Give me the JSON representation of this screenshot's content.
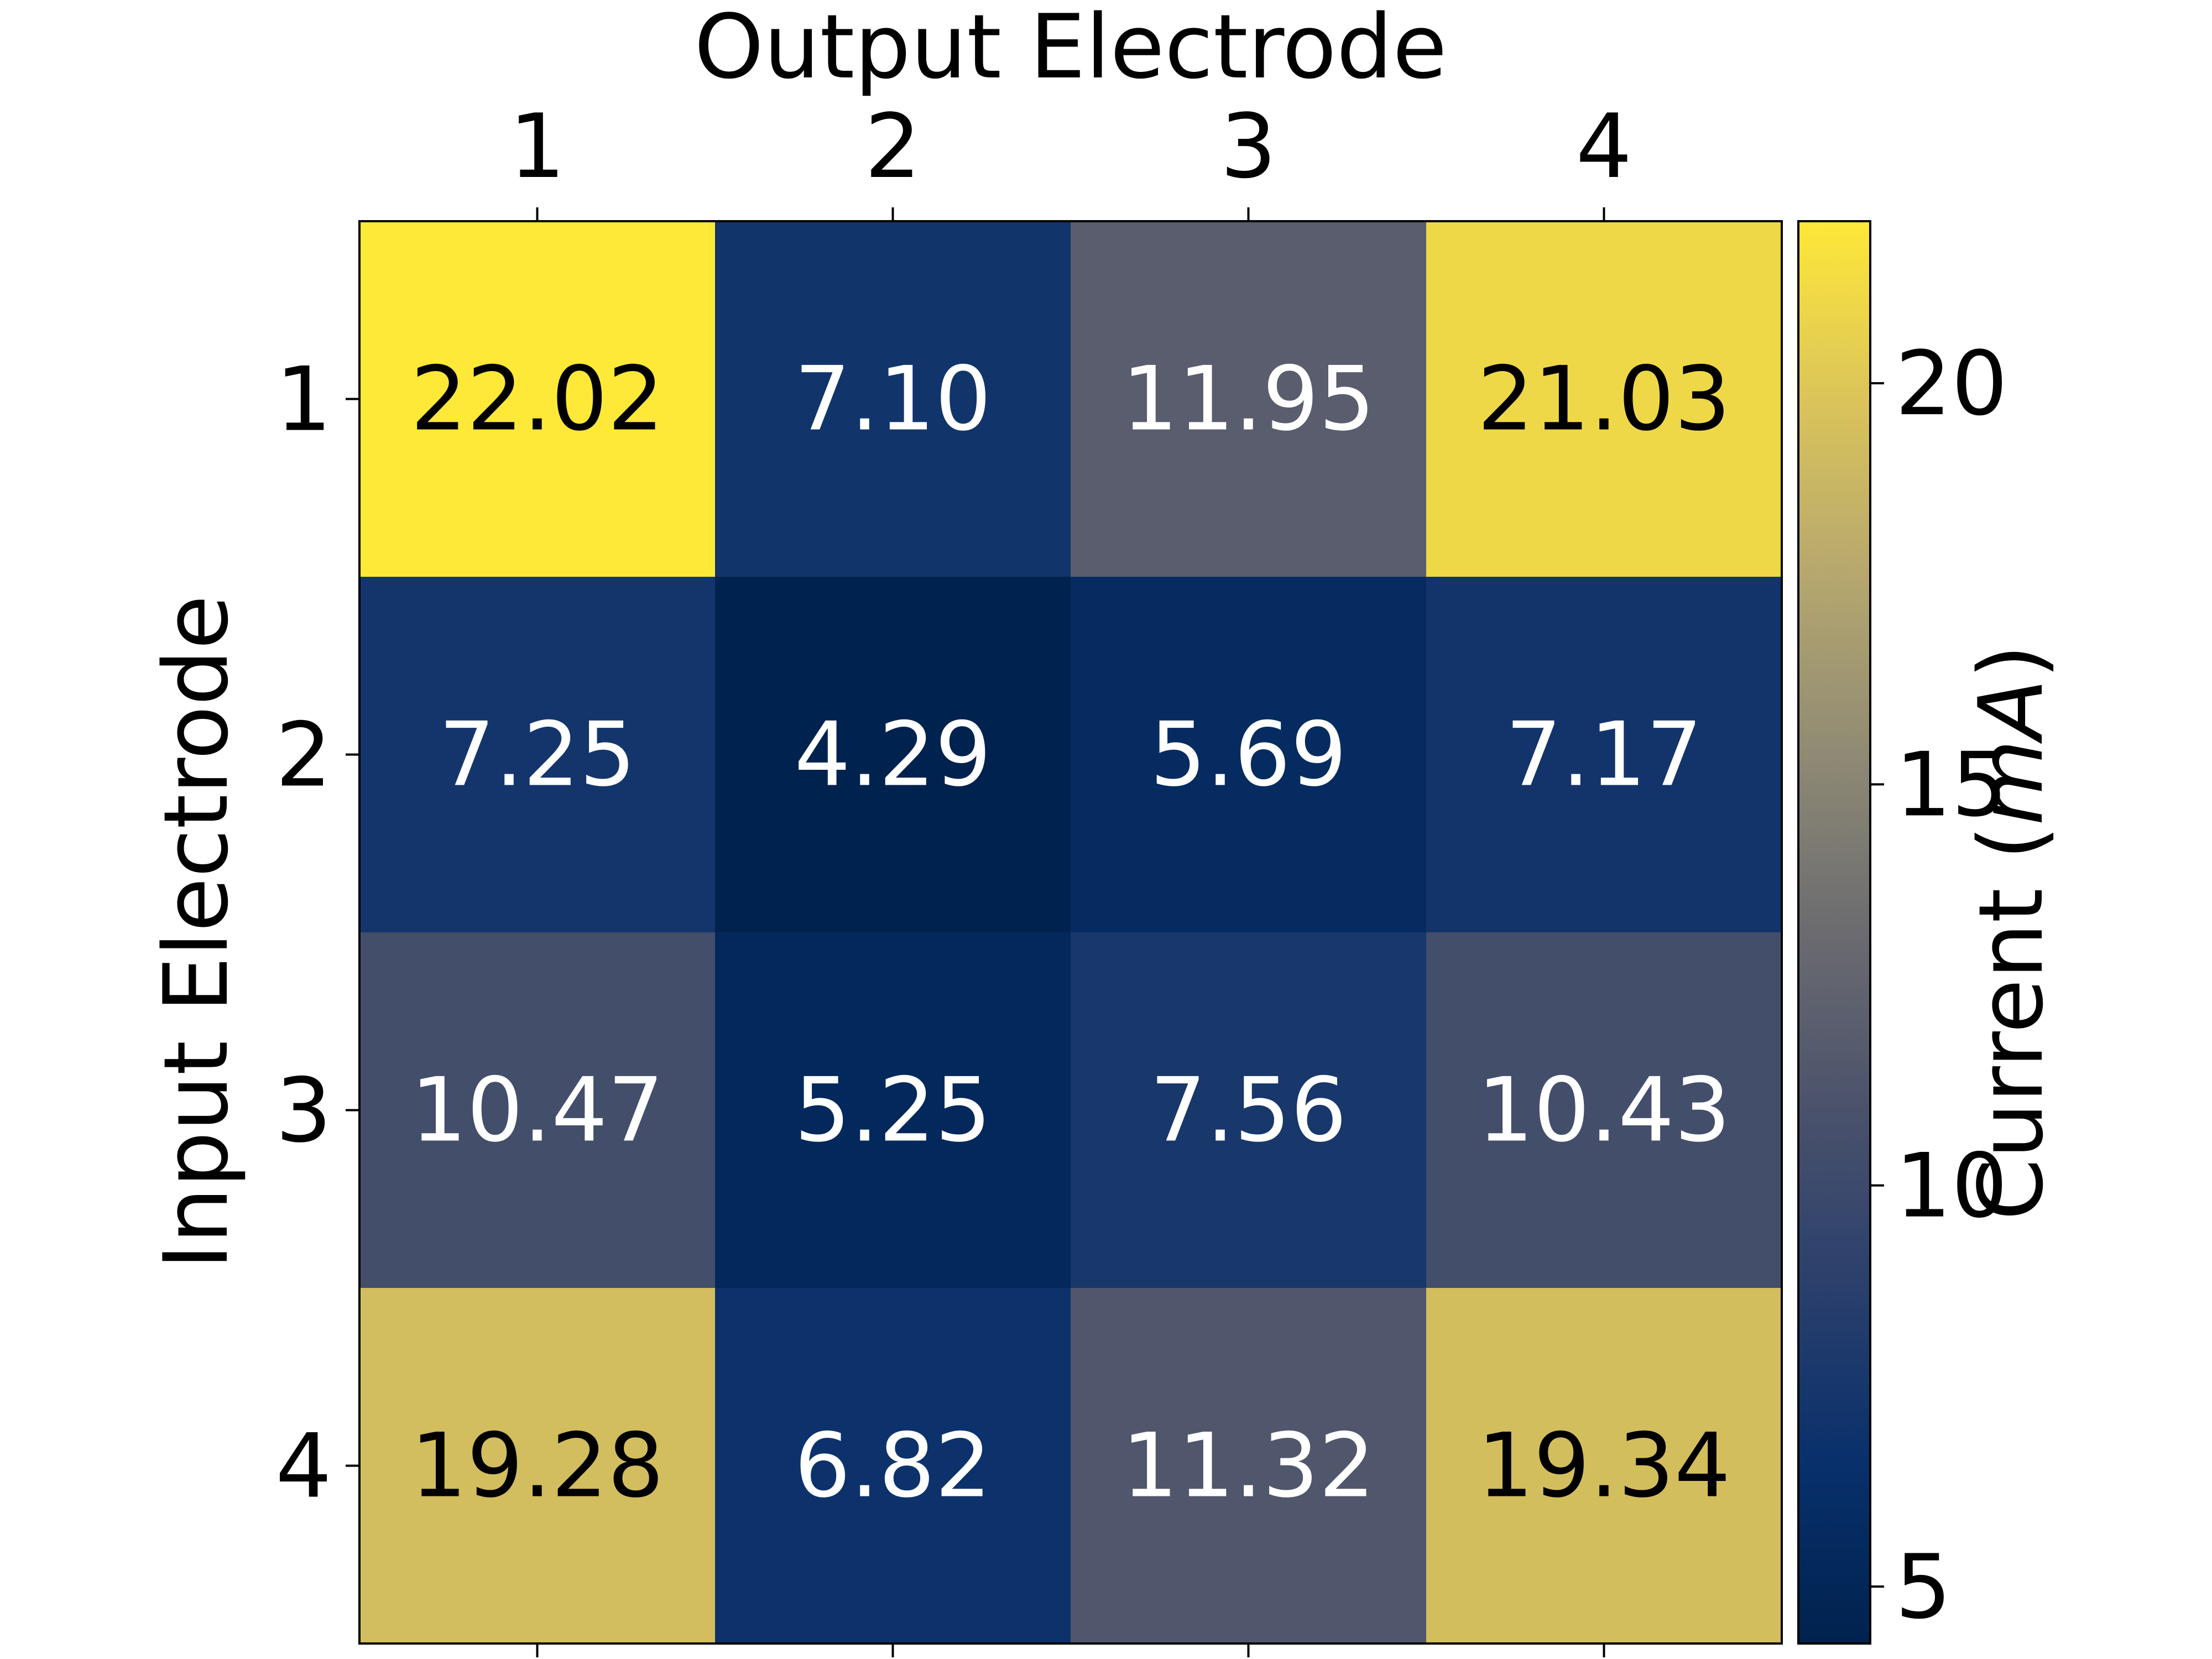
{
  "chart_data": {
    "type": "heatmap",
    "title": "",
    "xlabel": "Output Electrode",
    "ylabel": "Input Electrode",
    "x_categories": [
      "1",
      "2",
      "3",
      "4"
    ],
    "y_categories": [
      "1",
      "2",
      "3",
      "4"
    ],
    "values": [
      [
        22.02,
        7.1,
        11.95,
        21.03
      ],
      [
        7.25,
        4.29,
        5.69,
        7.17
      ],
      [
        10.47,
        5.25,
        7.56,
        10.43
      ],
      [
        19.28,
        6.82,
        11.32,
        19.34
      ]
    ],
    "value_labels": [
      [
        "22.02",
        "7.10",
        "11.95",
        "21.03"
      ],
      [
        "7.25",
        "4.29",
        "5.69",
        "7.17"
      ],
      [
        "10.47",
        "5.25",
        "7.56",
        "10.43"
      ],
      [
        "19.28",
        "6.82",
        "11.32",
        "19.34"
      ]
    ],
    "colormap": "cividis",
    "colorbar": {
      "label_prefix": "Current (",
      "label_unit": "mA",
      "label_suffix": ")",
      "range": [
        4.29,
        22.02
      ],
      "ticks": [
        5,
        10,
        15,
        20
      ]
    },
    "x_axis_position": "top",
    "grid": false
  }
}
